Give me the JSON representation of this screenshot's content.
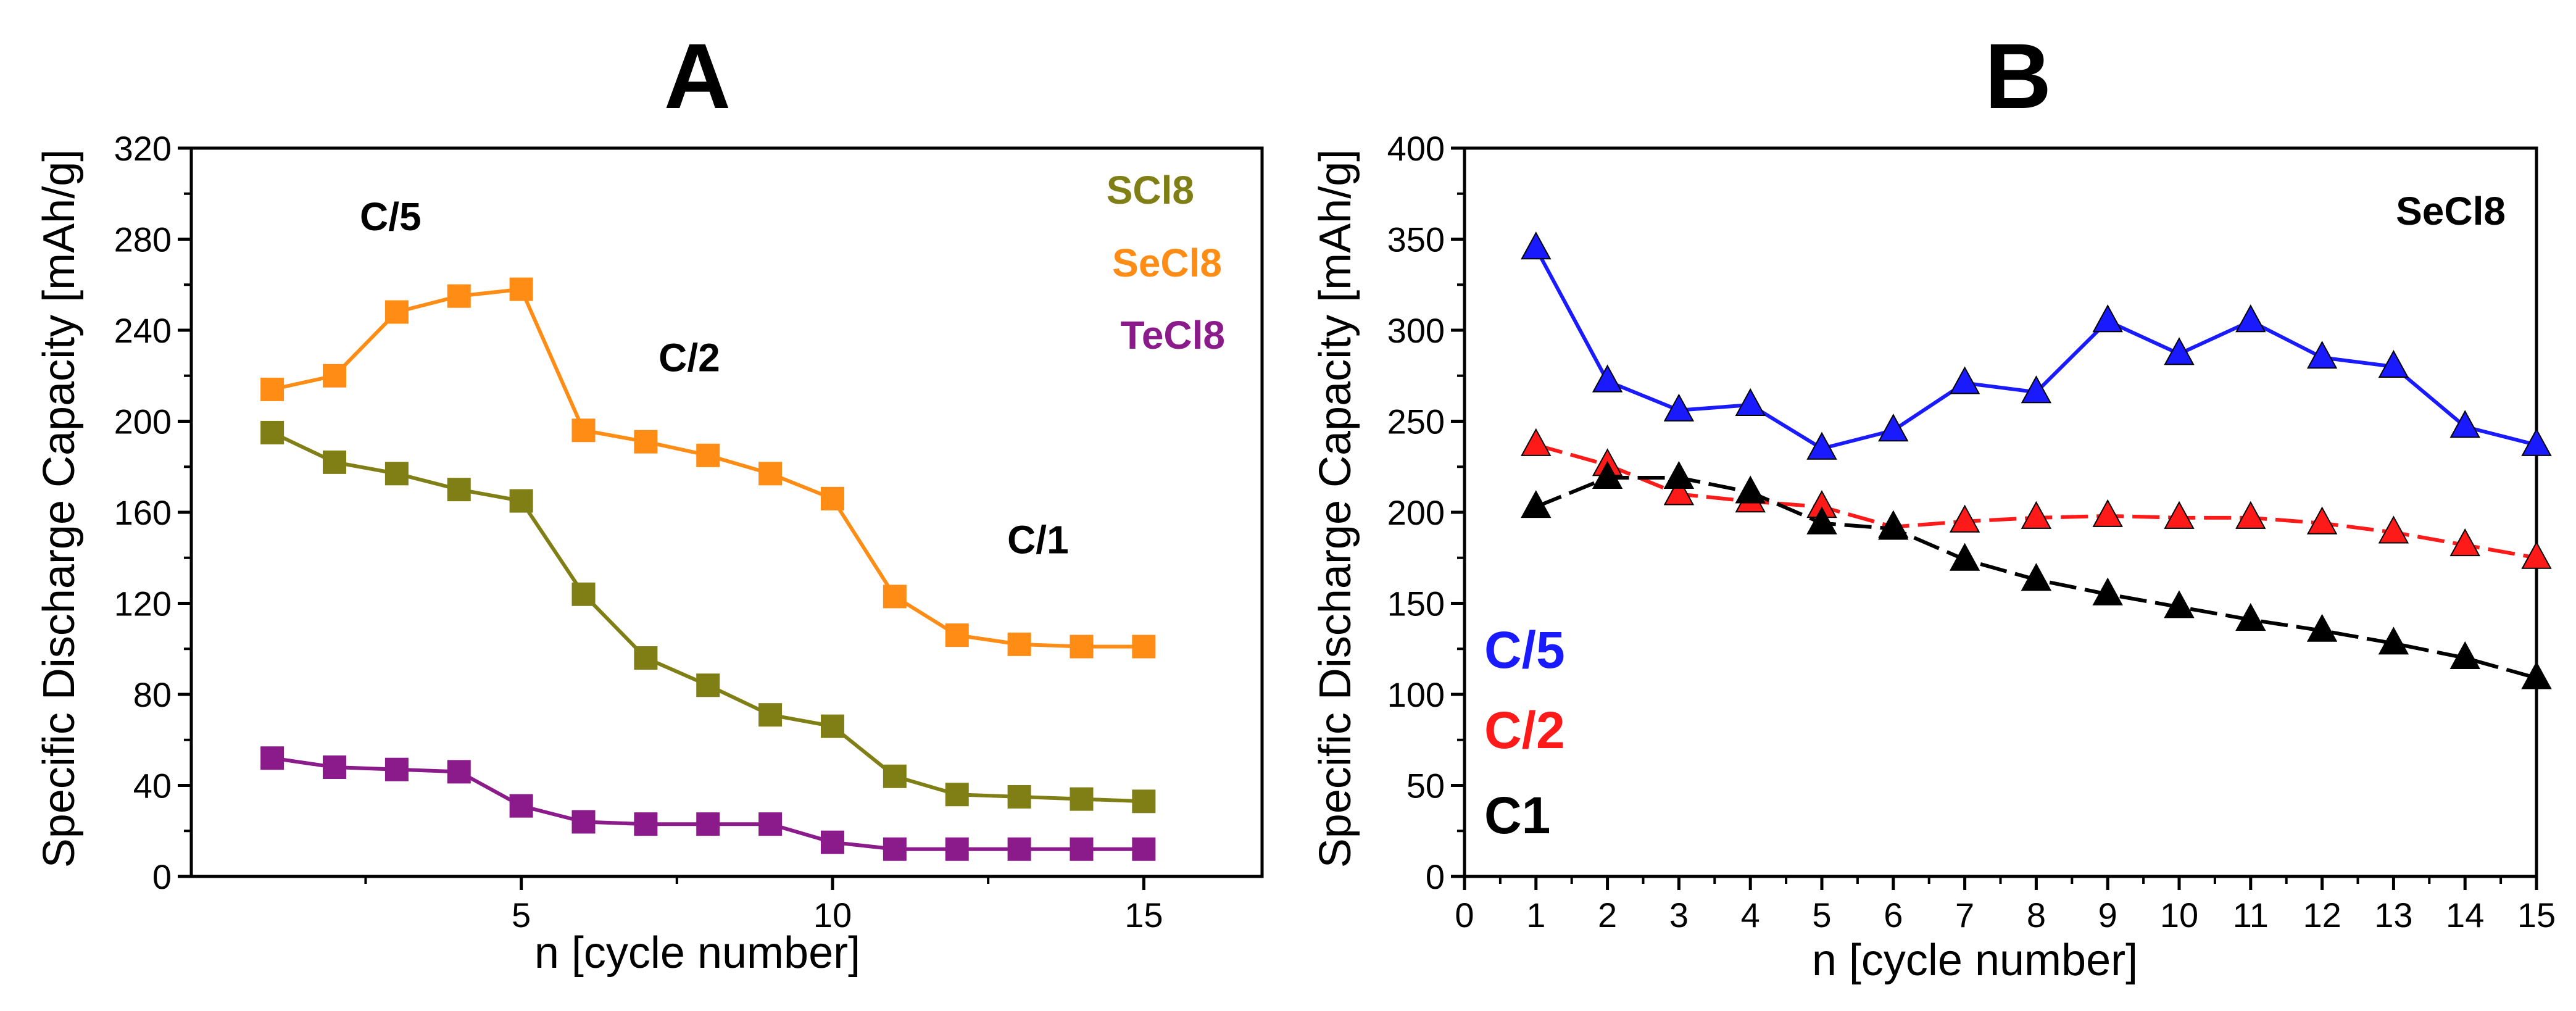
{
  "chart_data": [
    {
      "panel": "A",
      "type": "line",
      "title": "A",
      "xlabel": "n [cycle number]",
      "ylabel": "Specific Discharge Capacity [mAh/g]",
      "xlim": [
        -0.3,
        16.9
      ],
      "ylim": [
        0,
        320
      ],
      "xticks": [
        5,
        10,
        15
      ],
      "xtick_labels": [
        "5",
        "10",
        "15"
      ],
      "yticks": [
        0,
        40,
        80,
        120,
        160,
        200,
        240,
        280,
        320
      ],
      "ytick_labels": [
        "0",
        "40",
        "80",
        "120",
        "160",
        "200",
        "240",
        "280",
        "320"
      ],
      "marker": "square",
      "x": [
        1,
        2,
        3,
        4,
        5,
        6,
        7,
        8,
        9,
        10,
        11,
        12,
        13,
        14,
        15
      ],
      "series": [
        {
          "name": "SCl8",
          "color": "#7f7f16",
          "values": [
            195,
            182,
            177,
            170,
            165,
            124,
            96,
            84,
            71,
            66,
            44,
            36,
            35,
            34,
            33
          ]
        },
        {
          "name": "SeCl8",
          "color": "#ff8c14",
          "values": [
            214,
            220,
            248,
            255,
            258,
            196,
            191,
            185,
            177,
            166,
            123,
            106,
            102,
            101,
            101
          ]
        },
        {
          "name": "TeCl8",
          "color": "#8b1a8b",
          "values": [
            52,
            48,
            47,
            46,
            31,
            24,
            23,
            23,
            23,
            15,
            12,
            12,
            12,
            12,
            12
          ]
        }
      ],
      "legend": [
        "SCl8",
        "SeCl8",
        "TeCl8"
      ],
      "legend_position": "top-right",
      "annotations": [
        {
          "text": "C/5",
          "x": 2.9,
          "y": 284
        },
        {
          "text": "C/2",
          "x": 7.7,
          "y": 222
        },
        {
          "text": "C/1",
          "x": 13.3,
          "y": 142
        }
      ]
    },
    {
      "panel": "B",
      "type": "line",
      "title": "B",
      "xlabel": "n [cycle number]",
      "ylabel": "Specific Discharge Capacity [mAh/g]",
      "xlim": [
        0,
        15
      ],
      "ylim": [
        0,
        400
      ],
      "xticks": [
        0,
        1,
        2,
        3,
        4,
        5,
        6,
        7,
        8,
        9,
        10,
        11,
        12,
        13,
        14,
        15
      ],
      "xtick_labels": [
        "0",
        "1",
        "2",
        "3",
        "4",
        "5",
        "6",
        "7",
        "8",
        "9",
        "10",
        "11",
        "12",
        "13",
        "14",
        "15"
      ],
      "yticks": [
        0,
        50,
        100,
        150,
        200,
        250,
        300,
        350,
        400
      ],
      "ytick_labels": [
        "0",
        "50",
        "100",
        "150",
        "200",
        "250",
        "300",
        "350",
        "400"
      ],
      "marker": "triangle",
      "x": [
        1,
        2,
        3,
        4,
        5,
        6,
        7,
        8,
        9,
        10,
        11,
        12,
        13,
        14,
        15
      ],
      "series": [
        {
          "name": "C/5",
          "color": "#1a1aff",
          "dash": "solid",
          "values": [
            345,
            272,
            256,
            259,
            235,
            245,
            271,
            266,
            305,
            287,
            305,
            285,
            280,
            247,
            237
          ]
        },
        {
          "name": "C/2",
          "color": "#ff1a1a",
          "dash": "dashed",
          "values": [
            237,
            226,
            210,
            206,
            203,
            192,
            195,
            197,
            198,
            197,
            197,
            194,
            189,
            182,
            175
          ]
        },
        {
          "name": "C1",
          "color": "#000000",
          "dash": "dashed",
          "values": [
            203,
            219,
            219,
            211,
            194,
            191,
            174,
            163,
            155,
            148,
            141,
            135,
            128,
            120,
            109
          ]
        }
      ],
      "legend": [
        "C/5",
        "C/2",
        "C1"
      ],
      "legend_position": "bottom-left",
      "annotations": [
        {
          "text": "SeCl8",
          "x": 13.8,
          "y": 358
        }
      ]
    }
  ]
}
